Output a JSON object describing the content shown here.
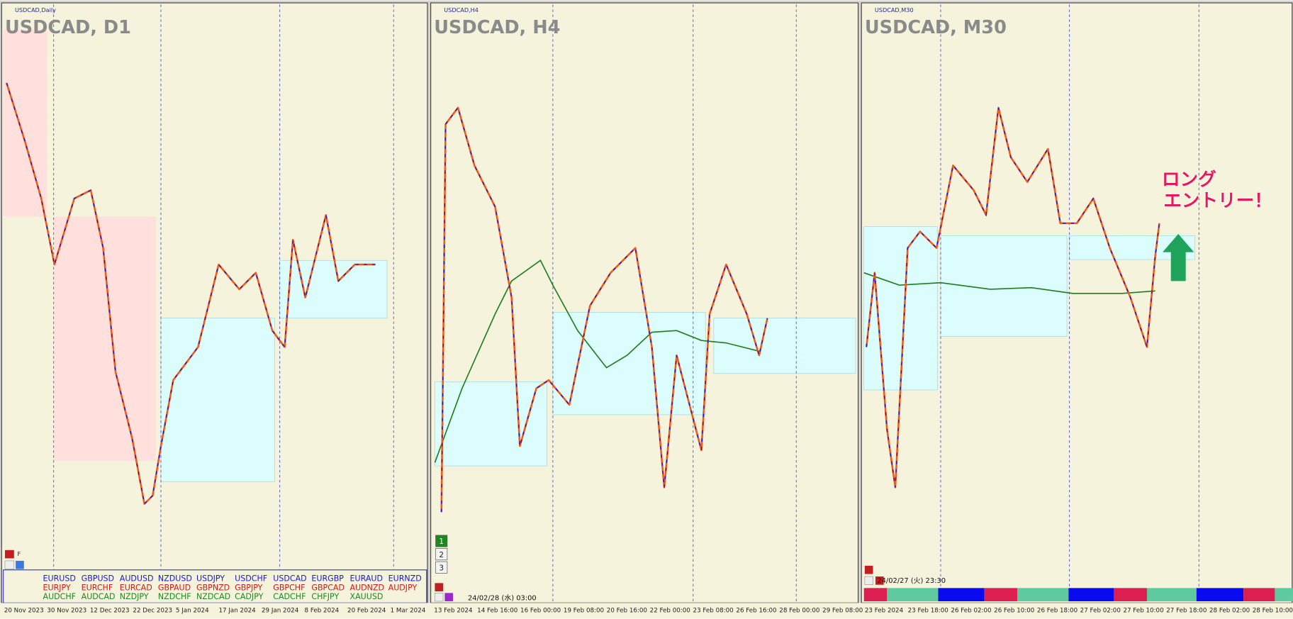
{
  "panels": [
    {
      "tab": "USDCAD,Daily",
      "title": "USDCAD, D1",
      "button": "F",
      "x_labels": [
        "20 Nov 2023",
        "30 Nov 2023",
        "12 Dec 2023",
        "22 Dec 2023",
        "5 Jan 2024",
        "17 Jan 2024",
        "29 Jan 2024",
        "8 Feb 2024",
        "20 Feb 2024",
        "1 Mar 2024"
      ]
    },
    {
      "tab": "USDCAD,H4",
      "title": "USDCAD, H4",
      "timestamp": "24/02/28 (水) 03:00",
      "buttons": [
        "1",
        "2",
        "3"
      ],
      "x_labels": [
        "13 Feb 2024",
        "14 Feb 16:00",
        "16 Feb 00:00",
        "19 Feb 08:00",
        "20 Feb 16:00",
        "22 Feb 00:00",
        "23 Feb 08:00",
        "26 Feb 16:00",
        "28 Feb 00:00",
        "29 Feb 08:00"
      ]
    },
    {
      "tab": "USDCAD,M30",
      "title": "USDCAD, M30",
      "timestamp": "24/02/27 (火) 23:30",
      "annotation": [
        "ロング",
        "エントリー！"
      ],
      "x_labels": [
        "23 Feb 2024",
        "23 Feb 18:00",
        "26 Feb 02:00",
        "26 Feb 10:00",
        "26 Feb 18:00",
        "27 Feb 02:00",
        "27 Feb 10:00",
        "27 Feb 18:00",
        "28 Feb 02:00",
        "28 Feb 10:00"
      ]
    }
  ],
  "symbols": [
    [
      "EURUSD",
      "EURJPY",
      "AUDCHF"
    ],
    [
      "GBPUSD",
      "EURCHF",
      "AUDCAD"
    ],
    [
      "AUDUSD",
      "EURCAD",
      "NZDJPY"
    ],
    [
      "NZDUSD",
      "GBPAUD",
      "NZDCHF"
    ],
    [
      "USDJPY",
      "GBPNZD",
      "NZDCAD"
    ],
    [
      "USDCHF",
      "GBPJPY",
      "CADJPY"
    ],
    [
      "USDCAD",
      "GBPCHF",
      "CADCHF"
    ],
    [
      "EURGBP",
      "GBPCAD",
      "CHFJPY"
    ],
    [
      "EURAUD",
      "AUDNZD",
      "XAUUSD"
    ],
    [
      "EURNZD",
      "AUDJPY"
    ]
  ]
}
